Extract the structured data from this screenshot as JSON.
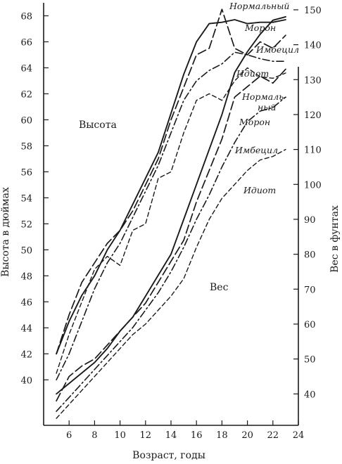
{
  "chart_data": {
    "type": "line",
    "xlabel": "Возраст, годы",
    "ylabel_left": "Высота в дюймах",
    "ylabel_right": "Вес в фунтах",
    "x_ticks": [
      6,
      8,
      10,
      12,
      14,
      16,
      18,
      20,
      22,
      24
    ],
    "xlim": [
      4,
      24
    ],
    "y_left_ticks": [
      40,
      42,
      44,
      46,
      48,
      50,
      52,
      54,
      56,
      58,
      60,
      62,
      64,
      66,
      68
    ],
    "ylim_left": [
      36.5,
      69
    ],
    "y_right_ticks": [
      40,
      50,
      60,
      70,
      80,
      90,
      100,
      110,
      120,
      130,
      140,
      150
    ],
    "ylim_right": [
      31,
      152
    ],
    "group_labels": {
      "height": "Высота",
      "weight": "Вес"
    },
    "height_series": [
      {
        "name": "Нормальный",
        "style": "solid",
        "points": [
          [
            5,
            42
          ],
          [
            6,
            44.5
          ],
          [
            7,
            46.5
          ],
          [
            8,
            48
          ],
          [
            9,
            50
          ],
          [
            10,
            51.5
          ],
          [
            11,
            53.5
          ],
          [
            12,
            55.5
          ],
          [
            13,
            57.5
          ],
          [
            14,
            60.5
          ],
          [
            15,
            63.5
          ],
          [
            16,
            66
          ],
          [
            17,
            67.4
          ],
          [
            18,
            67.5
          ],
          [
            19,
            67.7
          ],
          [
            20,
            67.4
          ],
          [
            21,
            67.5
          ],
          [
            22,
            67.5
          ],
          [
            23,
            67.7
          ]
        ]
      },
      {
        "name": "Морон",
        "style": "long-dash",
        "points": [
          [
            5,
            42
          ],
          [
            6,
            45
          ],
          [
            7,
            47.5
          ],
          [
            8,
            49
          ],
          [
            9,
            50.5
          ],
          [
            10,
            51.5
          ],
          [
            11,
            53
          ],
          [
            12,
            55
          ],
          [
            13,
            57
          ],
          [
            14,
            60
          ],
          [
            15,
            62.5
          ],
          [
            16,
            65
          ],
          [
            17,
            65.5
          ],
          [
            18,
            68.5
          ],
          [
            19,
            65.5
          ],
          [
            20,
            65
          ],
          [
            21,
            66
          ],
          [
            22,
            65.5
          ],
          [
            23,
            66.5
          ]
        ]
      },
      {
        "name": "Имбецил",
        "style": "dash-dot",
        "points": [
          [
            5,
            40
          ],
          [
            6,
            42
          ],
          [
            7,
            44.5
          ],
          [
            8,
            47
          ],
          [
            9,
            49
          ],
          [
            10,
            50.5
          ],
          [
            11,
            52.5
          ],
          [
            12,
            54.5
          ],
          [
            13,
            56.5
          ],
          [
            14,
            59
          ],
          [
            15,
            61.5
          ],
          [
            16,
            63
          ],
          [
            17,
            63.8
          ],
          [
            18,
            64.3
          ],
          [
            19,
            65.2
          ],
          [
            20,
            65
          ],
          [
            21,
            64.7
          ],
          [
            22,
            64.5
          ],
          [
            23,
            64.5
          ]
        ]
      },
      {
        "name": "Идиот",
        "style": "short-dash",
        "points": [
          [
            5,
            40.5
          ],
          [
            6,
            43.5
          ],
          [
            7,
            46
          ],
          [
            8,
            48.5
          ],
          [
            9,
            49.5
          ],
          [
            10,
            48.8
          ],
          [
            11,
            51.5
          ],
          [
            12,
            52
          ],
          [
            13,
            55.5
          ],
          [
            14,
            56
          ],
          [
            15,
            59
          ],
          [
            16,
            61.5
          ],
          [
            17,
            62
          ],
          [
            18,
            61.5
          ],
          [
            19,
            63
          ],
          [
            20,
            64
          ],
          [
            21,
            63.3
          ],
          [
            22,
            63.2
          ],
          [
            23,
            63.6
          ]
        ]
      }
    ],
    "weight_series": [
      {
        "name": "Нормальный",
        "style": "solid",
        "points": [
          [
            5,
            40
          ],
          [
            6,
            43
          ],
          [
            7,
            46
          ],
          [
            8,
            49
          ],
          [
            9,
            53
          ],
          [
            10,
            58
          ],
          [
            11,
            62
          ],
          [
            12,
            68
          ],
          [
            13,
            74
          ],
          [
            14,
            80
          ],
          [
            15,
            90
          ],
          [
            16,
            100
          ],
          [
            17,
            110
          ],
          [
            18,
            120
          ],
          [
            19,
            132
          ],
          [
            20,
            138
          ],
          [
            21,
            143
          ],
          [
            22,
            147
          ],
          [
            23,
            148
          ]
        ]
      },
      {
        "name": "Морон",
        "style": "long-dash",
        "points": [
          [
            5,
            38
          ],
          [
            6,
            45
          ],
          [
            7,
            48
          ],
          [
            8,
            50
          ],
          [
            9,
            54
          ],
          [
            10,
            58
          ],
          [
            11,
            62
          ],
          [
            12,
            66
          ],
          [
            13,
            72
          ],
          [
            14,
            78
          ],
          [
            15,
            84
          ],
          [
            16,
            95
          ],
          [
            17,
            104
          ],
          [
            18,
            113
          ],
          [
            19,
            125
          ],
          [
            20,
            128
          ],
          [
            21,
            131
          ],
          [
            22,
            129
          ],
          [
            23,
            133
          ]
        ]
      },
      {
        "name": "Имбецил",
        "style": "dash-dot",
        "points": [
          [
            5,
            35
          ],
          [
            6,
            39
          ],
          [
            7,
            43
          ],
          [
            8,
            47
          ],
          [
            9,
            51
          ],
          [
            10,
            55
          ],
          [
            11,
            59
          ],
          [
            12,
            64
          ],
          [
            13,
            69
          ],
          [
            14,
            75
          ],
          [
            15,
            82
          ],
          [
            16,
            90
          ],
          [
            17,
            97
          ],
          [
            18,
            105
          ],
          [
            19,
            112
          ],
          [
            20,
            118
          ],
          [
            21,
            121
          ],
          [
            22,
            122
          ],
          [
            23,
            125
          ]
        ]
      },
      {
        "name": "Идиот",
        "style": "short-dash",
        "points": [
          [
            5,
            33
          ],
          [
            6,
            37
          ],
          [
            7,
            41
          ],
          [
            8,
            45
          ],
          [
            9,
            49
          ],
          [
            10,
            53
          ],
          [
            11,
            57
          ],
          [
            12,
            60
          ],
          [
            13,
            64
          ],
          [
            14,
            68
          ],
          [
            15,
            73
          ],
          [
            16,
            82
          ],
          [
            17,
            90
          ],
          [
            18,
            96
          ],
          [
            19,
            100
          ],
          [
            20,
            104
          ],
          [
            21,
            107
          ],
          [
            22,
            108
          ],
          [
            23,
            110
          ]
        ]
      }
    ],
    "legend_placement": "inline labels at line ends",
    "grid": false
  }
}
